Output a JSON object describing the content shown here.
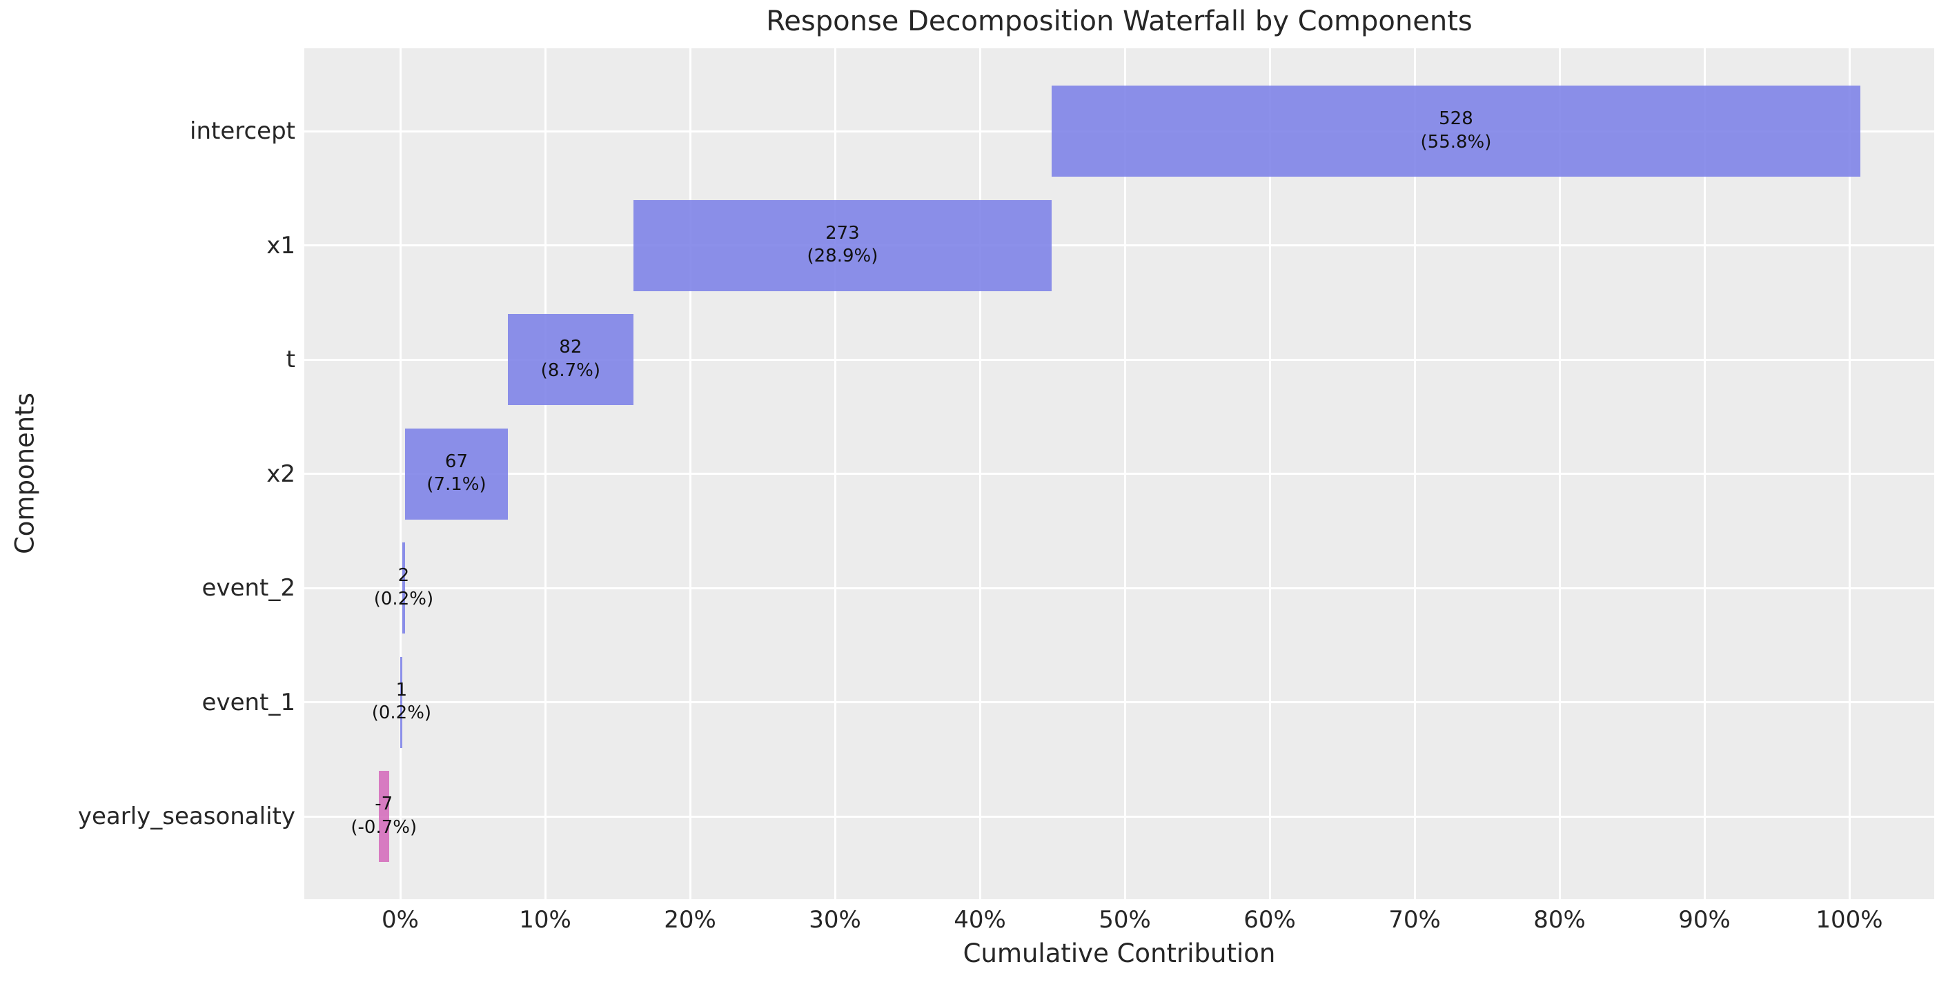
{
  "chart_data": {
    "type": "bar",
    "variant": "waterfall",
    "orientation": "horizontal",
    "title": "Response Decomposition Waterfall by Components",
    "xlabel": "Cumulative Contribution",
    "ylabel": "Components",
    "categories": [
      "intercept",
      "x1",
      "t",
      "x2",
      "event_2",
      "event_1",
      "yearly_seasonality"
    ],
    "values": [
      528,
      273,
      82,
      67,
      2,
      1,
      -7
    ],
    "pct_of_total": [
      55.8,
      28.9,
      8.7,
      7.1,
      0.2,
      0.2,
      -0.7
    ],
    "bars": [
      {
        "category": "intercept",
        "value": 528,
        "value_label": "528",
        "pct_label": "(55.8%)",
        "start": 44.95,
        "end": 100.76,
        "sign": "positive"
      },
      {
        "category": "x1",
        "value": 273,
        "value_label": "273",
        "pct_label": "(28.9%)",
        "start": 16.09,
        "end": 44.95,
        "sign": "positive"
      },
      {
        "category": "t",
        "value": 82,
        "value_label": "82",
        "pct_label": "(8.7%)",
        "start": 7.42,
        "end": 16.09,
        "sign": "positive"
      },
      {
        "category": "x2",
        "value": 67,
        "value_label": "67",
        "pct_label": "(7.1%)",
        "start": 0.34,
        "end": 7.42,
        "sign": "positive"
      },
      {
        "category": "event_2",
        "value": 2,
        "value_label": "2",
        "pct_label": "(0.2%)",
        "start": 0.13,
        "end": 0.34,
        "sign": "positive"
      },
      {
        "category": "event_1",
        "value": 1,
        "value_label": "1",
        "pct_label": "(0.2%)",
        "start": 0.02,
        "end": 0.13,
        "sign": "positive"
      },
      {
        "category": "yearly_seasonality",
        "value": -7,
        "value_label": "-7",
        "pct_label": "(-0.7%)",
        "start": -1.5,
        "end": -0.76,
        "sign": "negative"
      }
    ],
    "x_ticks": [
      {
        "value": 0,
        "label": "0%"
      },
      {
        "value": 10,
        "label": "10%"
      },
      {
        "value": 20,
        "label": "20%"
      },
      {
        "value": 30,
        "label": "30%"
      },
      {
        "value": 40,
        "label": "40%"
      },
      {
        "value": 50,
        "label": "50%"
      },
      {
        "value": 60,
        "label": "60%"
      },
      {
        "value": 70,
        "label": "70%"
      },
      {
        "value": 80,
        "label": "80%"
      },
      {
        "value": 90,
        "label": "90%"
      },
      {
        "value": 100,
        "label": "100%"
      }
    ],
    "xlim": [
      -6.6,
      105.9
    ],
    "grid": true,
    "legend": false,
    "colors": {
      "positive": "#7b80e7",
      "negative": "#d36aba",
      "plot_background": "#ececec",
      "gridline": "#ffffff",
      "text": "#262626",
      "bar_label_text": "#111111"
    }
  }
}
